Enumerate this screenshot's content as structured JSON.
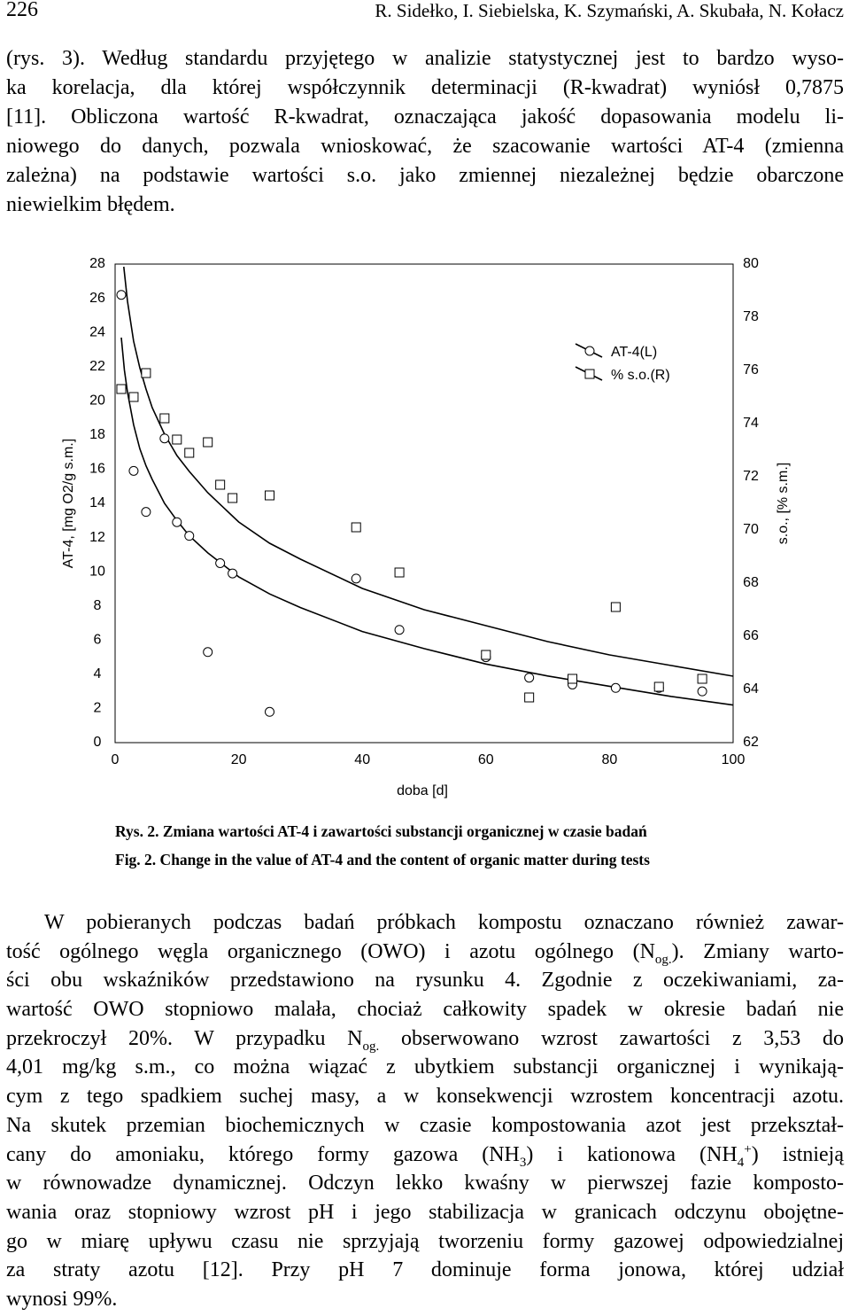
{
  "header": {
    "page_number": "226",
    "authors": "R. Sidełko, I. Siebielska, K. Szymański, A. Skubała, N. Kołacz"
  },
  "text_before": {
    "lines": [
      [
        "(rys. 3). Według standardu przyjętego w analizie statystycznej jest to bardzo wyso-"
      ],
      [
        "ka korelacja, dla której współczynnik determinacji (R-kwadrat) wyniósł  0,7875"
      ],
      [
        "[11]. Obliczona wartość R-kwadrat, oznaczająca jakość dopasowania modelu li-"
      ],
      [
        "niowego do danych, pozwala wnioskować, że szacowanie wartości AT-4 (zmienna"
      ],
      [
        "zależna) na podstawie wartości s.o.  jako zmiennej niezależnej będzie obarczone"
      ],
      [
        "niewielkim błędem."
      ]
    ]
  },
  "chart_data": {
    "type": "scatter",
    "xlabel": "doba [d]",
    "ylabel": "AT-4, [mg O2/g s.m.]",
    "y2label": "s.o., [% s.m.]",
    "xlim": [
      0,
      100
    ],
    "xticks": [
      0,
      20,
      40,
      60,
      80,
      100
    ],
    "ylim": [
      0,
      28
    ],
    "yticks": [
      0,
      2,
      4,
      6,
      8,
      10,
      12,
      14,
      16,
      18,
      20,
      22,
      24,
      26,
      28
    ],
    "y2lim": [
      62,
      80
    ],
    "y2ticks": [
      62,
      64,
      66,
      68,
      70,
      72,
      74,
      76,
      78,
      80
    ],
    "legend": "upper right",
    "series": [
      {
        "name": "AT-4(L)",
        "marker": "circle",
        "color": "#000000",
        "x": [
          1,
          3,
          5,
          8,
          10,
          12,
          15,
          17,
          19,
          25,
          39,
          46,
          60,
          67,
          74,
          81,
          88,
          95
        ],
        "values": [
          26.2,
          15.9,
          13.5,
          17.8,
          12.9,
          12.1,
          5.3,
          10.5,
          9.9,
          1.8,
          9.6,
          6.6,
          5.0,
          3.8,
          3.4,
          3.2,
          3.2,
          3.0
        ],
        "fit_x": [
          1,
          1.5,
          2,
          3,
          4,
          5,
          6,
          8,
          10,
          12,
          15,
          20,
          25,
          30,
          40,
          50,
          60,
          70,
          80,
          90,
          100
        ],
        "fit_values": [
          23.7,
          21.8,
          20.5,
          18.6,
          17.2,
          16.2,
          15.4,
          14.0,
          13.0,
          12.1,
          11.1,
          9.7,
          8.7,
          7.9,
          6.5,
          5.5,
          4.6,
          3.9,
          3.3,
          2.7,
          2.2
        ]
      },
      {
        "name": "% s.o.(R)",
        "marker": "square",
        "color": "#000000",
        "axis": "y2",
        "x": [
          1,
          3,
          5,
          8,
          10,
          12,
          15,
          17,
          19,
          25,
          39,
          46,
          60,
          67,
          74,
          81,
          88,
          95
        ],
        "values": [
          75.3,
          75.0,
          75.9,
          74.2,
          73.4,
          72.9,
          73.3,
          71.7,
          71.2,
          71.3,
          70.1,
          68.4,
          65.3,
          63.7,
          64.4,
          67.1,
          64.1,
          64.4
        ],
        "fit_x": [
          1.4,
          2,
          3,
          4,
          5,
          6,
          8,
          10,
          12,
          15,
          20,
          25,
          30,
          40,
          50,
          60,
          70,
          80,
          90,
          100
        ],
        "fit_values": [
          79.9,
          78.6,
          77.1,
          76.1,
          75.3,
          74.6,
          73.6,
          72.8,
          72.2,
          71.4,
          70.3,
          69.5,
          68.9,
          67.8,
          67.0,
          66.4,
          65.8,
          65.3,
          64.9,
          64.5
        ]
      }
    ]
  },
  "figure": {
    "caption_pl": "Rys. 2. Zmiana wartości AT-4 i zawartości substancji organicznej w czasie badań",
    "caption_en": "Fig. 2. Change in the value of AT-4 and the content of organic matter during tests"
  },
  "text_after": {
    "lines": [
      [
        "W pobieranych podczas badań próbkach kompostu  oznaczano również zawar-"
      ],
      [
        "tość ogólnego węgla organicznego (OWO)  i azotu ogólnego (N",
        {
          "sub": "og."
        },
        "). Zmiany warto-"
      ],
      [
        "ści obu wskaźników przedstawiono na rysunku 4. Zgodnie z oczekiwaniami, za-"
      ],
      [
        "wartość OWO stopniowo malała, chociaż całkowity spadek w okresie badań nie"
      ],
      [
        "przekroczył 20%. W przypadku N",
        {
          "sub": "og."
        },
        " obserwowano wzrost zawartości z 3,53 do"
      ],
      [
        "4,01 mg/kg s.m., co można wiązać z ubytkiem substancji organicznej i wynikają-"
      ],
      [
        "cym z tego spadkiem suchej masy, a w konsekwencji wzrostem koncentracji azotu."
      ],
      [
        "Na skutek przemian biochemicznych w czasie kompostowania azot jest przekształ-"
      ],
      [
        "cany do amoniaku, którego formy gazowa (NH",
        {
          "sub": "3"
        },
        ") i kationowa (NH",
        {
          "sub": "4"
        },
        {
          "sup": "+"
        },
        ") istnieją"
      ],
      [
        "w równowadze dynamicznej. Odczyn lekko kwaśny w pierwszej fazie komposto-"
      ],
      [
        "wania oraz stopniowy wzrost pH i jego stabilizacja w granicach odczynu obojętne-"
      ],
      [
        "go w miarę upływu czasu nie sprzyjają tworzeniu formy gazowej odpowiedzialnej"
      ],
      [
        "za straty azotu [12]. Przy pH 7 dominuje forma jonowa, której udział"
      ],
      [
        "wynosi 99%."
      ]
    ]
  }
}
